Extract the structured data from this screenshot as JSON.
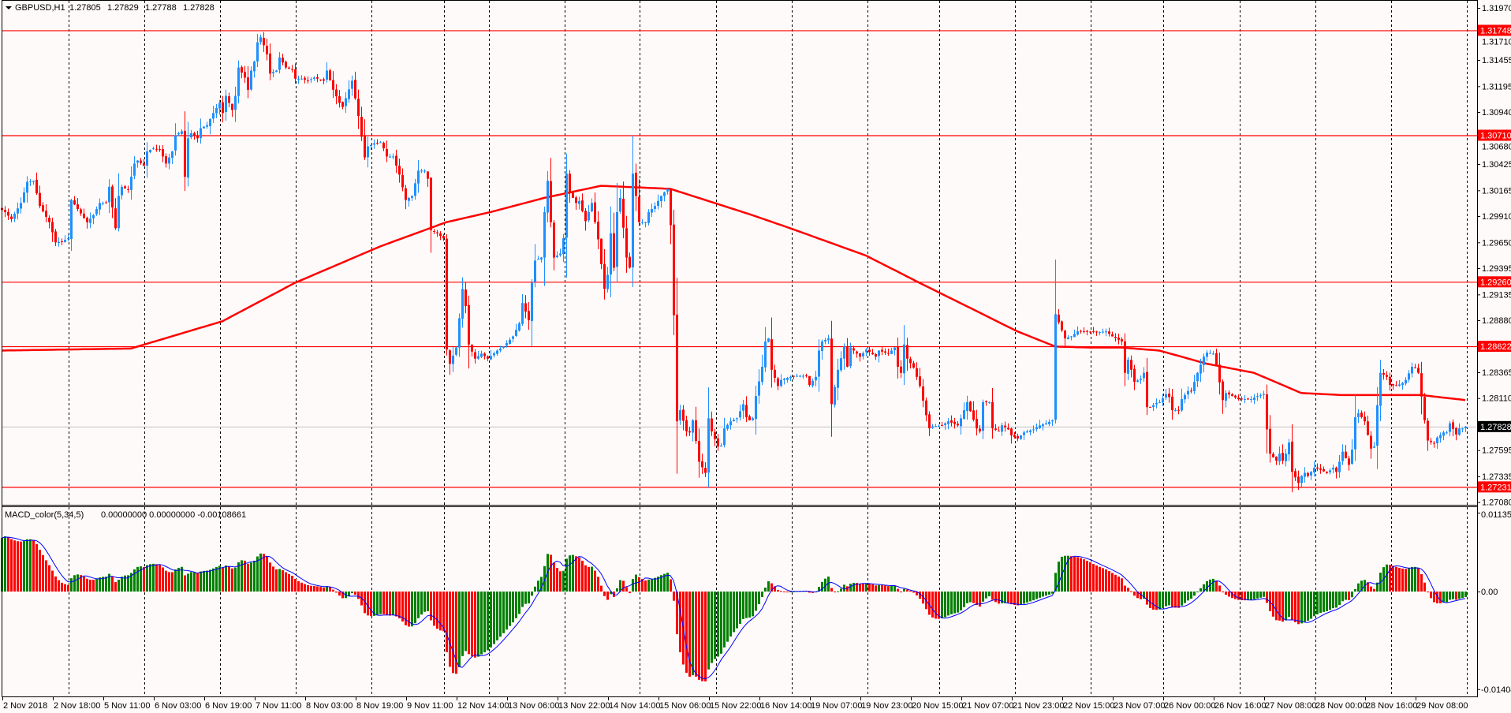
{
  "header": {
    "symbol": "GBPUSD,H1",
    "open": "1.27805",
    "high": "1.27829",
    "low": "1.27788",
    "close": "1.27828",
    "menu_icon": "triangle-down-icon"
  },
  "macd_header": {
    "name": "MACD_color(5,34,5)",
    "values": "0.00000000 0.00000000 -0.00108661"
  },
  "colors": {
    "background": "#fffafa",
    "bull": "#1e90ff",
    "bear": "#ff0000",
    "level": "#ff0000",
    "ma": "#ff0000",
    "bid_line": "#c0c0c0",
    "macd_up": "#008000",
    "macd_down": "#ff0000",
    "signal": "#0000ff"
  },
  "chart_data": [
    {
      "type": "candlestick",
      "title": "GBPUSD,H1",
      "ylim": [
        1.2708,
        1.3197
      ],
      "y_tick_labels": [
        "1.31970",
        "1.31710",
        "1.31455",
        "1.31195",
        "1.30940",
        "1.30680",
        "1.30425",
        "1.30165",
        "1.29910",
        "1.29650",
        "1.29395",
        "1.29135",
        "1.28880",
        "1.28365",
        "1.28110",
        "1.27595",
        "1.27335",
        "1.27080"
      ],
      "x_tick_labels": [
        "2 Nov 2018",
        "2 Nov 18:00",
        "5 Nov 11:00",
        "6 Nov 03:00",
        "6 Nov 19:00",
        "7 Nov 11:00",
        "8 Nov 03:00",
        "8 Nov 19:00",
        "9 Nov 11:00",
        "12 Nov 14:00",
        "13 Nov 06:00",
        "13 Nov 22:00",
        "14 Nov 14:00",
        "15 Nov 06:00",
        "15 Nov 22:00",
        "16 Nov 14:00",
        "19 Nov 07:00",
        "19 Nov 23:00",
        "20 Nov 15:00",
        "21 Nov 07:00",
        "21 Nov 23:00",
        "22 Nov 15:00",
        "23 Nov 07:00",
        "26 Nov 00:00",
        "26 Nov 16:00",
        "27 Nov 08:00",
        "28 Nov 00:00",
        "28 Nov 16:00",
        "29 Nov 08:00"
      ],
      "bars_count": 465,
      "grid": true,
      "levels": [
        {
          "price": 1.31748,
          "label": "1.31748"
        },
        {
          "price": 1.3071,
          "label": "1.30710"
        },
        {
          "price": 1.2926,
          "label": "1.29260"
        },
        {
          "price": 1.28622,
          "label": "1.28622"
        },
        {
          "price": 1.27231,
          "label": "1.27231"
        }
      ],
      "bid": {
        "price": 1.27828,
        "label": "1.27828"
      },
      "close_path": [
        [
          0,
          1.2997
        ],
        [
          1,
          1.2995
        ],
        [
          3,
          1.2988
        ],
        [
          6,
          1.3004
        ],
        [
          8,
          1.3025
        ],
        [
          10,
          1.3026
        ],
        [
          12,
          1.3001
        ],
        [
          15,
          1.2985
        ],
        [
          17,
          1.2965
        ],
        [
          19,
          1.2966
        ],
        [
          21,
          1.2969
        ],
        [
          22,
          1.3007
        ],
        [
          24,
          1.2998
        ],
        [
          27,
          1.2985
        ],
        [
          29,
          1.2992
        ],
        [
          31,
          1.3004
        ],
        [
          33,
          1.3004
        ],
        [
          34,
          1.302
        ],
        [
          36,
          1.2979
        ],
        [
          37,
          1.3011
        ],
        [
          38,
          1.302
        ],
        [
          40,
          1.3017
        ],
        [
          42,
          1.3043
        ],
        [
          43,
          1.3046
        ],
        [
          45,
          1.3041
        ],
        [
          46,
          1.3055
        ],
        [
          48,
          1.3058
        ],
        [
          50,
          1.3057
        ],
        [
          52,
          1.3043
        ],
        [
          54,
          1.3055
        ],
        [
          55,
          1.3071
        ],
        [
          57,
          1.3075
        ],
        [
          58,
          1.303
        ],
        [
          59,
          1.3068
        ],
        [
          60,
          1.3073
        ],
        [
          62,
          1.3068
        ],
        [
          63,
          1.3078
        ],
        [
          65,
          1.3081
        ],
        [
          67,
          1.3093
        ],
        [
          69,
          1.3103
        ],
        [
          70,
          1.3093
        ],
        [
          71,
          1.311
        ],
        [
          73,
          1.3096
        ],
        [
          74,
          1.311
        ],
        [
          75,
          1.3138
        ],
        [
          77,
          1.3128
        ],
        [
          78,
          1.3116
        ],
        [
          79,
          1.3135
        ],
        [
          80,
          1.3144
        ],
        [
          81,
          1.3163
        ],
        [
          82,
          1.3168
        ],
        [
          83,
          1.316
        ],
        [
          84,
          1.3151
        ],
        [
          85,
          1.3132
        ],
        [
          87,
          1.3135
        ],
        [
          88,
          1.3148
        ],
        [
          90,
          1.3138
        ],
        [
          92,
          1.3136
        ],
        [
          93,
          1.3127
        ],
        [
          95,
          1.3127
        ],
        [
          97,
          1.3125
        ],
        [
          99,
          1.3128
        ],
        [
          102,
          1.3125
        ],
        [
          103,
          1.3135
        ],
        [
          105,
          1.3116
        ],
        [
          107,
          1.3103
        ],
        [
          108,
          1.3099
        ],
        [
          111,
          1.3125
        ],
        [
          113,
          1.309
        ],
        [
          115,
          1.3049
        ],
        [
          116,
          1.306
        ],
        [
          118,
          1.3063
        ],
        [
          120,
          1.3064
        ],
        [
          121,
          1.3058
        ],
        [
          122,
          1.305
        ],
        [
          124,
          1.305
        ],
        [
          126,
          1.3032
        ],
        [
          128,
          1.3007
        ],
        [
          130,
          1.3011
        ],
        [
          132,
          1.3036
        ],
        [
          134,
          1.3036
        ],
        [
          135,
          1.3028
        ],
        [
          136,
          1.2977
        ],
        [
          138,
          1.2974
        ],
        [
          140,
          1.2969
        ],
        [
          141,
          1.2859
        ],
        [
          142,
          1.2845
        ],
        [
          144,
          1.2861
        ],
        [
          146,
          1.2919
        ],
        [
          147,
          1.2902
        ],
        [
          148,
          1.2864
        ],
        [
          150,
          1.285
        ],
        [
          152,
          1.2855
        ],
        [
          154,
          1.285
        ],
        [
          157,
          1.2858
        ],
        [
          159,
          1.2862
        ],
        [
          162,
          1.2872
        ],
        [
          164,
          1.2885
        ],
        [
          165,
          1.2905
        ],
        [
          167,
          1.2888
        ],
        [
          168,
          1.2925
        ],
        [
          169,
          1.2947
        ],
        [
          171,
          1.295
        ],
        [
          172,
          1.2995
        ],
        [
          173,
          1.3026
        ],
        [
          174,
          1.2985
        ],
        [
          175,
          1.295
        ],
        [
          177,
          1.2954
        ],
        [
          178,
          1.2969
        ],
        [
          179,
          1.3033
        ],
        [
          180,
          1.3014
        ],
        [
          182,
          1.3004
        ],
        [
          183,
          1.3006
        ],
        [
          185,
          1.2986
        ],
        [
          187,
          1.3004
        ],
        [
          188,
          1.2985
        ],
        [
          189,
          1.2968
        ],
        [
          191,
          1.2919
        ],
        [
          192,
          1.2933
        ],
        [
          193,
          1.2974
        ],
        [
          194,
          1.294
        ],
        [
          195,
          1.2995
        ],
        [
          196,
          1.3009
        ],
        [
          198,
          1.295
        ],
        [
          199,
          1.294
        ],
        [
          200,
          1.3033
        ],
        [
          201,
          1.3011
        ],
        [
          202,
          1.2985
        ],
        [
          204,
          1.2985
        ],
        [
          205,
          1.2995
        ],
        [
          207,
          1.3001
        ],
        [
          209,
          1.3011
        ],
        [
          211,
          1.3018
        ],
        [
          212,
          1.2982
        ],
        [
          213,
          1.2893
        ],
        [
          214,
          1.2788
        ],
        [
          215,
          1.2799
        ],
        [
          217,
          1.2778
        ],
        [
          218,
          1.2777
        ],
        [
          219,
          1.2789
        ],
        [
          221,
          1.2748
        ],
        [
          223,
          1.2737
        ],
        [
          224,
          1.2791
        ],
        [
          225,
          1.2778
        ],
        [
          227,
          1.2763
        ],
        [
          228,
          1.2764
        ],
        [
          229,
          1.2781
        ],
        [
          231,
          1.2788
        ],
        [
          233,
          1.2791
        ],
        [
          234,
          1.2798
        ],
        [
          235,
          1.2805
        ],
        [
          236,
          1.2792
        ],
        [
          237,
          1.2789
        ],
        [
          238,
          1.2791
        ],
        [
          239,
          1.2813
        ],
        [
          241,
          1.2842
        ],
        [
          242,
          1.2867
        ],
        [
          243,
          1.287
        ],
        [
          244,
          1.2839
        ],
        [
          246,
          1.2823
        ],
        [
          247,
          1.2829
        ],
        [
          250,
          1.2832
        ],
        [
          252,
          1.2833
        ],
        [
          255,
          1.2833
        ],
        [
          256,
          1.2824
        ],
        [
          258,
          1.2832
        ],
        [
          259,
          1.2858
        ],
        [
          260,
          1.2867
        ],
        [
          262,
          1.287
        ],
        [
          263,
          1.2805
        ],
        [
          265,
          1.2839
        ],
        [
          267,
          1.2862
        ],
        [
          268,
          1.2842
        ],
        [
          269,
          1.2861
        ],
        [
          272,
          1.2852
        ],
        [
          274,
          1.2859
        ],
        [
          277,
          1.2852
        ],
        [
          278,
          1.2858
        ],
        [
          281,
          1.2855
        ],
        [
          283,
          1.2861
        ],
        [
          284,
          1.2842
        ],
        [
          285,
          1.2836
        ],
        [
          286,
          1.2864
        ],
        [
          287,
          1.285
        ],
        [
          289,
          1.2841
        ],
        [
          291,
          1.2823
        ],
        [
          293,
          1.2794
        ],
        [
          294,
          1.2781
        ],
        [
          295,
          1.2783
        ],
        [
          298,
          1.2784
        ],
        [
          300,
          1.2788
        ],
        [
          303,
          1.2784
        ],
        [
          304,
          1.2791
        ],
        [
          306,
          1.2807
        ],
        [
          307,
          1.2798
        ],
        [
          309,
          1.2781
        ],
        [
          310,
          1.2778
        ],
        [
          311,
          1.2807
        ],
        [
          313,
          1.2807
        ],
        [
          314,
          1.2781
        ],
        [
          316,
          1.2778
        ],
        [
          317,
          1.2784
        ],
        [
          319,
          1.278
        ],
        [
          320,
          1.2774
        ],
        [
          322,
          1.2771
        ],
        [
          324,
          1.2777
        ],
        [
          327,
          1.278
        ],
        [
          329,
          1.2784
        ],
        [
          331,
          1.2786
        ],
        [
          333,
          1.2789
        ],
        [
          334,
          1.2894
        ],
        [
          335,
          1.2886
        ],
        [
          337,
          1.287
        ],
        [
          339,
          1.2872
        ],
        [
          341,
          1.2877
        ],
        [
          343,
          1.2877
        ],
        [
          347,
          1.2876
        ],
        [
          350,
          1.2877
        ],
        [
          352,
          1.2872
        ],
        [
          355,
          1.2867
        ],
        [
          356,
          1.2836
        ],
        [
          357,
          1.2849
        ],
        [
          358,
          1.2839
        ],
        [
          359,
          1.2827
        ],
        [
          361,
          1.283
        ],
        [
          362,
          1.2836
        ],
        [
          363,
          1.2802
        ],
        [
          364,
          1.2802
        ],
        [
          366,
          1.2806
        ],
        [
          367,
          1.2807
        ],
        [
          369,
          1.2815
        ],
        [
          370,
          1.2812
        ],
        [
          371,
          1.2799
        ],
        [
          373,
          1.2799
        ],
        [
          374,
          1.281
        ],
        [
          376,
          1.2818
        ],
        [
          377,
          1.2818
        ],
        [
          379,
          1.2836
        ],
        [
          381,
          1.2852
        ],
        [
          382,
          1.2856
        ],
        [
          384,
          1.2855
        ],
        [
          385,
          1.2844
        ],
        [
          387,
          1.2809
        ],
        [
          388,
          1.2816
        ],
        [
          390,
          1.2813
        ],
        [
          392,
          1.281
        ],
        [
          394,
          1.281
        ],
        [
          396,
          1.281
        ],
        [
          398,
          1.2813
        ],
        [
          400,
          1.2815
        ],
        [
          401,
          1.278
        ],
        [
          402,
          1.2756
        ],
        [
          404,
          1.2749
        ],
        [
          405,
          1.2756
        ],
        [
          406,
          1.2749
        ],
        [
          407,
          1.2756
        ],
        [
          408,
          1.2767
        ],
        [
          409,
          1.2738
        ],
        [
          411,
          1.2727
        ],
        [
          412,
          1.2734
        ],
        [
          413,
          1.2737
        ],
        [
          414,
          1.2734
        ],
        [
          416,
          1.2742
        ],
        [
          418,
          1.274
        ],
        [
          420,
          1.2737
        ],
        [
          422,
          1.2742
        ],
        [
          423,
          1.2738
        ],
        [
          425,
          1.2758
        ],
        [
          427,
          1.2745
        ],
        [
          428,
          1.276
        ],
        [
          429,
          1.2792
        ],
        [
          430,
          1.2796
        ],
        [
          431,
          1.2792
        ],
        [
          432,
          1.2788
        ],
        [
          434,
          1.2761
        ],
        [
          435,
          1.2763
        ],
        [
          436,
          1.2804
        ],
        [
          437,
          1.2836
        ],
        [
          439,
          1.2832
        ],
        [
          440,
          1.2824
        ],
        [
          442,
          1.2823
        ],
        [
          444,
          1.2826
        ],
        [
          445,
          1.2829
        ],
        [
          447,
          1.2842
        ],
        [
          448,
          1.2841
        ],
        [
          449,
          1.2836
        ],
        [
          451,
          1.2789
        ],
        [
          452,
          1.2769
        ],
        [
          454,
          1.2766
        ],
        [
          455,
          1.2772
        ],
        [
          457,
          1.2777
        ],
        [
          458,
          1.2777
        ],
        [
          459,
          1.2786
        ],
        [
          461,
          1.2775
        ],
        [
          462,
          1.2781
        ],
        [
          463,
          1.2781
        ],
        [
          464,
          1.27828
        ]
      ],
      "moving_average": [
        [
          0,
          1.2858
        ],
        [
          41,
          1.286
        ],
        [
          70,
          1.2887
        ],
        [
          93,
          1.2925
        ],
        [
          120,
          1.2961
        ],
        [
          141,
          1.2985
        ],
        [
          155,
          1.2995
        ],
        [
          172,
          1.3009
        ],
        [
          190,
          1.3021
        ],
        [
          212,
          1.3018
        ],
        [
          237,
          1.2993
        ],
        [
          250,
          1.2979
        ],
        [
          274,
          1.2952
        ],
        [
          291,
          1.2925
        ],
        [
          322,
          1.2877
        ],
        [
          334,
          1.2862
        ],
        [
          345,
          1.2861
        ],
        [
          355,
          1.2861
        ],
        [
          367,
          1.2858
        ],
        [
          382,
          1.2845
        ],
        [
          397,
          1.2836
        ],
        [
          412,
          1.2816
        ],
        [
          425,
          1.2814
        ],
        [
          450,
          1.2814
        ],
        [
          464,
          1.2809
        ]
      ]
    },
    {
      "type": "bar",
      "title": "MACD_color(5,34,5)",
      "fast": 5,
      "slow": 34,
      "signal": 5,
      "ylim": [
        -0.014047,
        0.011351
      ],
      "y_tick_labels": [
        "0.011351",
        "0.00",
        "-0.014047"
      ]
    }
  ]
}
